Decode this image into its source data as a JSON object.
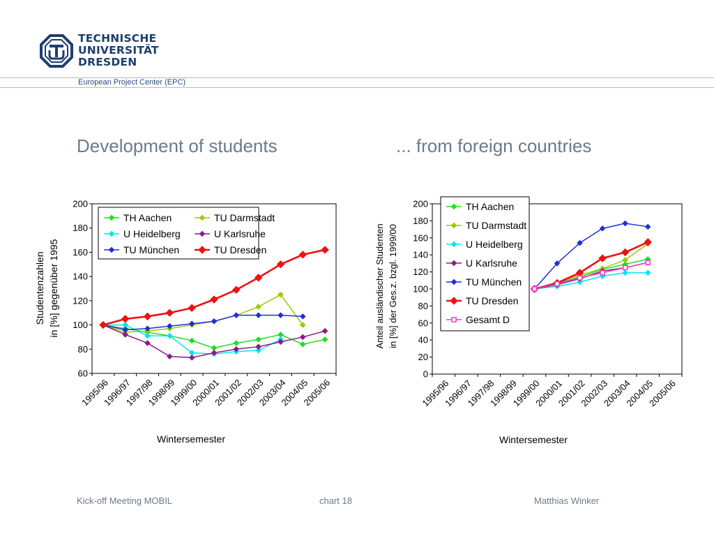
{
  "header": {
    "logo_lines": [
      "TECHNISCHE",
      "UNIVERSITÄT",
      "DRESDEN"
    ],
    "subtitle": "European Project Center (EPC)",
    "brand_color": "#1c3f6e"
  },
  "slide": {
    "title_left": "Development of students",
    "title_right": "... from foreign countries"
  },
  "footer": {
    "left": "Kick-off Meeting MOBIL",
    "center": "chart 18",
    "right": "Matthias Winker"
  },
  "chart_data": [
    {
      "type": "line",
      "categories": [
        "1995/96",
        "1996/97",
        "1997/98",
        "1998/99",
        "1999/00",
        "2000/01",
        "2001/02",
        "2002/03",
        "2003/04",
        "2004/05",
        "2005/06"
      ],
      "xlabel": "Wintersemester",
      "ylabel_lines": [
        "Studentenzahlen",
        "in [%] gegenüber 1995"
      ],
      "ylim": [
        60,
        200
      ],
      "yticks": [
        60,
        80,
        100,
        120,
        140,
        160,
        180,
        200
      ],
      "legend_position": "top-left",
      "legend_columns": 2,
      "series": [
        {
          "name": "TH Aachen",
          "color": "#22dd22",
          "marker": "diamond",
          "values": [
            100,
            97,
            94,
            91,
            87,
            81,
            85,
            88,
            92,
            84,
            88
          ]
        },
        {
          "name": "TU Darmstadt",
          "color": "#99cc00",
          "marker": "diamond",
          "values": [
            100,
            94,
            95,
            97,
            100,
            103,
            108,
            115,
            125,
            100,
            null
          ]
        },
        {
          "name": "U Heidelberg",
          "color": "#00e5ee",
          "marker": "diamond",
          "values": [
            100,
            100,
            91,
            91,
            77,
            76,
            78,
            79,
            88,
            null,
            null
          ]
        },
        {
          "name": "U Karlsruhe",
          "color": "#8b1a8b",
          "marker": "diamond",
          "values": [
            100,
            92,
            85,
            74,
            73,
            77,
            80,
            82,
            86,
            90,
            95
          ]
        },
        {
          "name": "TU München",
          "color": "#1f2fd6",
          "marker": "diamond",
          "values": [
            100,
            96,
            97,
            99,
            101,
            103,
            108,
            108,
            108,
            107,
            null
          ]
        },
        {
          "name": "TU Dresden",
          "color": "#ee1111",
          "marker": "diamond-large",
          "values": [
            100,
            105,
            107,
            110,
            114,
            121,
            129,
            139,
            150,
            158,
            162
          ]
        }
      ]
    },
    {
      "type": "line",
      "categories": [
        "1995/96",
        "1996/97",
        "1997/98",
        "1998/99",
        "1999/00",
        "2000/01",
        "2001/02",
        "2002/03",
        "2003/04",
        "2004/05",
        "2005/06"
      ],
      "xlabel": "Wintersemester",
      "ylabel_lines": [
        "Anteil ausländischer Studenten",
        "in [%] der Ges.z. bzgl. 1999/00"
      ],
      "ylim": [
        0,
        200
      ],
      "yticks": [
        0,
        20,
        40,
        60,
        80,
        100,
        120,
        140,
        160,
        180,
        200
      ],
      "legend_position": "top-left",
      "legend_columns": 1,
      "series": [
        {
          "name": "TH Aachen",
          "color": "#22dd22",
          "marker": "diamond",
          "values": [
            null,
            null,
            null,
            null,
            100,
            107,
            114,
            123,
            129,
            135,
            null
          ]
        },
        {
          "name": "TU Darmstadt",
          "color": "#99cc00",
          "marker": "diamond",
          "values": [
            null,
            null,
            null,
            null,
            100,
            108,
            116,
            124,
            134,
            153,
            null
          ]
        },
        {
          "name": "U Heidelberg",
          "color": "#00e5ee",
          "marker": "diamond",
          "values": [
            null,
            null,
            null,
            null,
            100,
            103,
            108,
            115,
            119,
            119,
            null
          ]
        },
        {
          "name": "U Karlsruhe",
          "color": "#8b1a8b",
          "marker": "diamond",
          "values": [
            null,
            null,
            null,
            null,
            100,
            105,
            112,
            121,
            125,
            131,
            null
          ]
        },
        {
          "name": "TU München",
          "color": "#1f2fd6",
          "marker": "diamond",
          "values": [
            null,
            null,
            null,
            null,
            100,
            130,
            154,
            171,
            177,
            173,
            null
          ]
        },
        {
          "name": "TU Dresden",
          "color": "#ee1111",
          "marker": "diamond-large",
          "values": [
            null,
            null,
            null,
            null,
            100,
            107,
            119,
            136,
            143,
            155,
            null
          ]
        },
        {
          "name": "Gesamt D",
          "color": "#ff33cc",
          "marker": "square-open",
          "values": [
            null,
            null,
            null,
            null,
            100,
            106,
            113,
            119,
            125,
            131,
            null
          ]
        }
      ]
    }
  ]
}
